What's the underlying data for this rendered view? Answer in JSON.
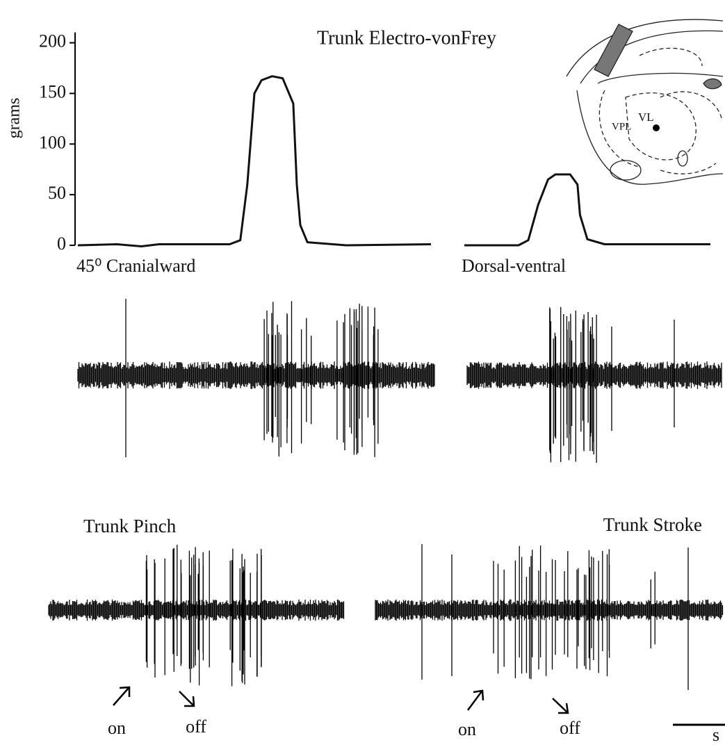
{
  "chart_data": [
    {
      "type": "line",
      "title": "Trunk Electro-vonFrey",
      "subtitle": "45⁰ Cranialward",
      "y_label": "grams",
      "ylim": [
        0,
        210
      ],
      "yticks": [
        0,
        50,
        100,
        150,
        200
      ],
      "xlim": [
        0,
        100
      ],
      "x": [
        0,
        11,
        18,
        23,
        43,
        46,
        48,
        50,
        52,
        55,
        58,
        61,
        62,
        63,
        65,
        76,
        100
      ],
      "series": [
        {
          "color": "#111111",
          "values": [
            0,
            1,
            -1,
            1,
            1,
            5,
            60,
            150,
            163,
            167,
            165,
            140,
            60,
            20,
            3,
            0,
            1
          ]
        }
      ]
    },
    {
      "type": "line",
      "subtitle": "Dorsal-ventral",
      "ylim": [
        0,
        210
      ],
      "xlim": [
        0,
        100
      ],
      "x": [
        0,
        22,
        26,
        30,
        34,
        37,
        43,
        46,
        47,
        50,
        57,
        80,
        100
      ],
      "series": [
        {
          "color": "#111111",
          "values": [
            0,
            0,
            5,
            40,
            65,
            70,
            70,
            60,
            30,
            6,
            1,
            1,
            1
          ]
        }
      ]
    }
  ],
  "labels": {
    "pinch": "Trunk Pinch",
    "stroke": "Trunk Stroke",
    "pinch_on": "on",
    "pinch_off": "off",
    "stroke_on": "on",
    "stroke_off": "off",
    "scale": "s",
    "atlas_vl": "VL",
    "atlas_vpl": "VPL"
  }
}
